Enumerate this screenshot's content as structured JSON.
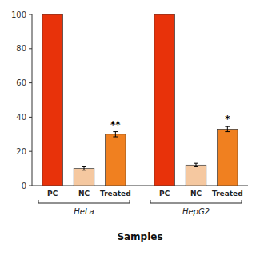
{
  "chart_data": {
    "type": "bar",
    "categories": [
      "PC",
      "NC",
      "Treated"
    ],
    "colors": [
      "#e8320a",
      "#f5c8a0",
      "#f08020"
    ],
    "series": [
      {
        "name": "HeLa",
        "values": [
          100,
          10,
          30
        ],
        "errors": [
          0,
          1.0,
          1.5
        ],
        "annotations": [
          null,
          null,
          "**"
        ]
      },
      {
        "name": "HepG2",
        "values": [
          100,
          12,
          33
        ],
        "errors": [
          0,
          1.0,
          1.5
        ],
        "annotations": [
          null,
          null,
          "*"
        ]
      }
    ],
    "xlabel": "Samples",
    "ylim": [
      0,
      100
    ],
    "yticks": [
      0,
      20,
      40,
      60,
      80,
      100
    ],
    "grid": false
  }
}
